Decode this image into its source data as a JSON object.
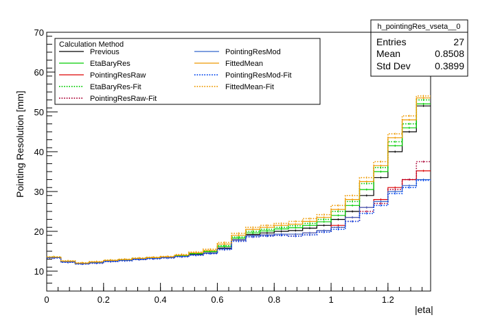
{
  "chart_data": {
    "type": "line",
    "style": "step-histogram",
    "title": "",
    "xlabel": "|eta|",
    "ylabel": "Pointing Resolution [mm]",
    "xlim": [
      0,
      1.35
    ],
    "ylim": [
      5,
      70
    ],
    "x_ticks": [
      0,
      0.2,
      0.4,
      0.6,
      0.8,
      1,
      1.2
    ],
    "x_tick_labels": [
      "0",
      "0.2",
      "0.4",
      "0.6",
      "0.8",
      "1",
      "1.2"
    ],
    "y_ticks": [
      10,
      20,
      30,
      40,
      50,
      60,
      70
    ],
    "y_tick_labels": [
      "10",
      "20",
      "30",
      "40",
      "50",
      "60",
      "70"
    ],
    "bin_edges": [
      0,
      0.05,
      0.1,
      0.15,
      0.2,
      0.25,
      0.3,
      0.35,
      0.4,
      0.45,
      0.5,
      0.55,
      0.6,
      0.65,
      0.7,
      0.75,
      0.8,
      0.85,
      0.9,
      0.95,
      1.0,
      1.05,
      1.1,
      1.15,
      1.2,
      1.25,
      1.3,
      1.35
    ],
    "legend": {
      "title": "Calculation Method",
      "placement": "top-left"
    },
    "series": [
      {
        "name": "Previous",
        "color": "#000000",
        "dash": "solid",
        "values": [
          13.4,
          12.4,
          11.9,
          12.1,
          12.5,
          12.7,
          13.0,
          13.2,
          13.4,
          13.8,
          14.2,
          14.6,
          15.8,
          17.9,
          19.2,
          19.6,
          20.0,
          20.2,
          20.8,
          21.5,
          23.0,
          25.0,
          29.0,
          33.5,
          40.0,
          45.0,
          51.5
        ]
      },
      {
        "name": "EtaBaryRes",
        "color": "#00cc00",
        "dash": "solid",
        "values": [
          13.5,
          12.4,
          11.9,
          12.2,
          12.6,
          12.8,
          13.1,
          13.3,
          13.5,
          13.9,
          14.4,
          14.9,
          16.2,
          18.3,
          19.6,
          20.1,
          20.6,
          20.9,
          21.5,
          22.4,
          24.0,
          26.5,
          30.5,
          35.0,
          41.5,
          46.0,
          52.0
        ]
      },
      {
        "name": "PointingResRaw",
        "color": "#dd0000",
        "dash": "solid",
        "values": [
          13.4,
          12.3,
          11.9,
          12.1,
          12.5,
          12.7,
          13.0,
          13.2,
          13.4,
          13.7,
          14.1,
          14.5,
          15.6,
          17.8,
          18.9,
          19.1,
          19.3,
          19.3,
          19.6,
          20.2,
          21.5,
          23.5,
          26.0,
          28.0,
          31.0,
          33.0,
          35.2
        ]
      },
      {
        "name": "EtaBaryRes-Fit",
        "color": "#00cc00",
        "dash": "dotted",
        "values": [
          13.6,
          12.5,
          12.0,
          12.3,
          12.7,
          12.9,
          13.2,
          13.4,
          13.6,
          14.0,
          14.5,
          15.0,
          16.4,
          18.6,
          20.0,
          20.5,
          21.0,
          21.4,
          22.0,
          23.0,
          25.0,
          27.5,
          32.0,
          36.0,
          42.5,
          47.0,
          53.0
        ]
      },
      {
        "name": "PointingResRaw-Fit",
        "color": "#aa0033",
        "dash": "dotted",
        "values": [
          13.3,
          12.2,
          11.8,
          12.0,
          12.4,
          12.6,
          12.9,
          13.1,
          13.3,
          13.6,
          14.0,
          14.4,
          15.4,
          17.5,
          18.6,
          18.8,
          19.0,
          18.8,
          19.1,
          19.8,
          21.0,
          22.5,
          25.0,
          27.0,
          30.5,
          33.0,
          37.5
        ]
      },
      {
        "name": "PointingResMod",
        "color": "#3366cc",
        "dash": "solid",
        "values": [
          13.4,
          12.3,
          11.9,
          12.1,
          12.5,
          12.7,
          13.0,
          13.2,
          13.4,
          13.7,
          14.1,
          14.5,
          15.6,
          17.8,
          18.9,
          19.1,
          19.3,
          19.3,
          19.6,
          20.2,
          21.0,
          23.5,
          26.0,
          27.5,
          30.0,
          31.5,
          33.0
        ]
      },
      {
        "name": "FittedMean",
        "color": "#ee9900",
        "dash": "solid",
        "values": [
          13.5,
          12.5,
          12.0,
          12.3,
          12.7,
          12.9,
          13.2,
          13.4,
          13.6,
          14.0,
          14.6,
          15.2,
          16.8,
          19.0,
          20.5,
          21.0,
          21.5,
          21.8,
          22.5,
          23.5,
          25.5,
          28.0,
          32.5,
          36.5,
          43.5,
          48.0,
          53.5
        ]
      },
      {
        "name": "PointingResMod-Fit",
        "color": "#0044ee",
        "dash": "dotted",
        "values": [
          13.3,
          12.2,
          11.8,
          12.0,
          12.4,
          12.6,
          12.9,
          13.1,
          13.3,
          13.6,
          14.0,
          14.4,
          15.4,
          17.5,
          18.6,
          18.8,
          19.0,
          18.8,
          19.1,
          19.8,
          20.5,
          22.5,
          24.5,
          26.5,
          29.5,
          31.0,
          32.8
        ]
      },
      {
        "name": "FittedMean-Fit",
        "color": "#ee9900",
        "dash": "dotted",
        "values": [
          13.6,
          12.6,
          12.1,
          12.4,
          12.8,
          13.0,
          13.3,
          13.5,
          13.7,
          14.2,
          14.8,
          15.5,
          17.2,
          19.5,
          21.0,
          21.5,
          22.0,
          22.5,
          23.2,
          24.2,
          26.5,
          29.0,
          33.5,
          37.5,
          44.5,
          49.0,
          54.0
        ]
      }
    ]
  },
  "stats_box": {
    "title": "h_pointingRes_vseta__0",
    "rows": [
      {
        "label": "Entries",
        "value": "27"
      },
      {
        "label": "Mean",
        "value": "0.8508"
      },
      {
        "label": "Std Dev",
        "value": "0.3899"
      }
    ]
  }
}
